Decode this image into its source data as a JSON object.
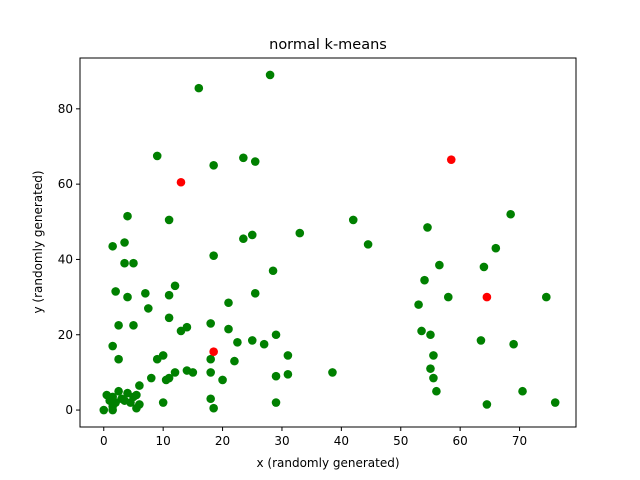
{
  "chart_data": {
    "type": "scatter",
    "title": "normal k-means",
    "xlabel": "x (randomly generated)",
    "ylabel": "y (randomly generated)",
    "xlim": [
      -4,
      79.5
    ],
    "ylim": [
      -4.5,
      93.5
    ],
    "xticks": [
      0,
      10,
      20,
      30,
      40,
      50,
      60,
      70
    ],
    "yticks": [
      0,
      20,
      40,
      60,
      80
    ],
    "grid": false,
    "series": [
      {
        "color": "#008000",
        "points": [
          [
            16.0,
            85.5
          ],
          [
            28.0,
            89.0
          ],
          [
            9.0,
            67.5
          ],
          [
            18.5,
            65.0
          ],
          [
            23.5,
            67.0
          ],
          [
            25.5,
            66.0
          ],
          [
            4.0,
            51.5
          ],
          [
            11.0,
            50.5
          ],
          [
            42.0,
            50.5
          ],
          [
            23.5,
            45.5
          ],
          [
            25.0,
            46.5
          ],
          [
            33.0,
            47.0
          ],
          [
            44.5,
            44.0
          ],
          [
            1.5,
            43.5
          ],
          [
            3.5,
            44.5
          ],
          [
            18.5,
            41.0
          ],
          [
            3.5,
            39.0
          ],
          [
            5.0,
            39.0
          ],
          [
            28.5,
            37.0
          ],
          [
            12.0,
            33.0
          ],
          [
            2.0,
            31.5
          ],
          [
            4.0,
            30.0
          ],
          [
            7.0,
            31.0
          ],
          [
            11.0,
            30.5
          ],
          [
            25.5,
            31.0
          ],
          [
            21.0,
            28.5
          ],
          [
            7.5,
            27.0
          ],
          [
            11.0,
            24.5
          ],
          [
            2.5,
            22.5
          ],
          [
            5.0,
            22.5
          ],
          [
            13.0,
            21.0
          ],
          [
            14.0,
            22.0
          ],
          [
            18.0,
            23.0
          ],
          [
            21.0,
            21.5
          ],
          [
            29.0,
            20.0
          ],
          [
            1.5,
            17.0
          ],
          [
            22.5,
            18.0
          ],
          [
            25.0,
            18.5
          ],
          [
            27.0,
            17.5
          ],
          [
            2.5,
            13.5
          ],
          [
            9.0,
            13.5
          ],
          [
            10.0,
            14.5
          ],
          [
            18.0,
            13.5
          ],
          [
            22.0,
            13.0
          ],
          [
            31.0,
            14.5
          ],
          [
            8.0,
            8.5
          ],
          [
            10.5,
            8.0
          ],
          [
            11.0,
            8.5
          ],
          [
            12.0,
            10.0
          ],
          [
            14.0,
            10.5
          ],
          [
            15.0,
            10.0
          ],
          [
            18.0,
            10.0
          ],
          [
            20.0,
            8.0
          ],
          [
            29.0,
            9.0
          ],
          [
            31.0,
            9.5
          ],
          [
            38.5,
            10.0
          ],
          [
            6.0,
            6.5
          ],
          [
            2.5,
            5.0
          ],
          [
            3.0,
            3.0
          ],
          [
            0.5,
            4.0
          ],
          [
            1.0,
            2.5
          ],
          [
            1.5,
            3.5
          ],
          [
            4.0,
            4.5
          ],
          [
            5.0,
            3.5
          ],
          [
            5.5,
            4.0
          ],
          [
            6.0,
            1.5
          ],
          [
            10.0,
            2.0
          ],
          [
            2.0,
            2.0
          ],
          [
            3.5,
            2.5
          ],
          [
            4.5,
            2.0
          ],
          [
            1.5,
            1.0
          ],
          [
            0.0,
            0.0
          ],
          [
            1.5,
            0.0
          ],
          [
            5.5,
            0.5
          ],
          [
            18.0,
            3.0
          ],
          [
            18.5,
            0.5
          ],
          [
            29.0,
            2.0
          ],
          [
            54.5,
            48.5
          ],
          [
            56.5,
            38.5
          ],
          [
            54.0,
            34.5
          ],
          [
            53.0,
            28.0
          ],
          [
            58.0,
            30.0
          ],
          [
            53.5,
            21.0
          ],
          [
            55.0,
            20.0
          ],
          [
            55.5,
            14.5
          ],
          [
            55.0,
            11.0
          ],
          [
            55.5,
            8.5
          ],
          [
            56.0,
            5.0
          ],
          [
            63.5,
            18.5
          ],
          [
            64.0,
            38.0
          ],
          [
            66.0,
            43.0
          ],
          [
            68.5,
            52.0
          ],
          [
            69.0,
            17.5
          ],
          [
            74.5,
            30.0
          ],
          [
            64.5,
            1.5
          ],
          [
            70.5,
            5.0
          ],
          [
            76.0,
            2.0
          ]
        ]
      },
      {
        "color": "#ff0000",
        "points": [
          [
            13.0,
            60.5
          ],
          [
            18.5,
            15.5
          ],
          [
            58.5,
            66.5
          ],
          [
            64.5,
            30.0
          ]
        ]
      }
    ]
  }
}
